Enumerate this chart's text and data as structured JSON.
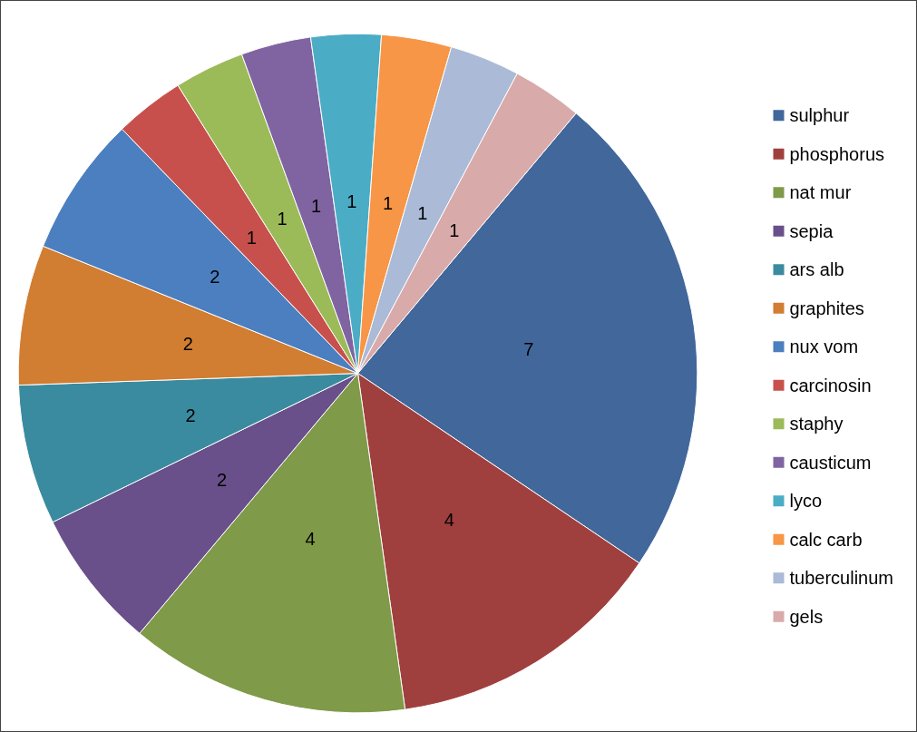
{
  "chart_data": {
    "type": "pie",
    "categories": [
      "sulphur",
      "phosphorus",
      "nat mur",
      "sepia",
      "ars alb",
      "graphites",
      "nux vom",
      "carcinosin",
      "staphy",
      "causticum",
      "lyco",
      "calc carb",
      "tuberculinum",
      "gels"
    ],
    "values": [
      7,
      4,
      4,
      2,
      2,
      2,
      2,
      1,
      1,
      1,
      1,
      1,
      1,
      1
    ],
    "colors": [
      "#41679b",
      "#a0403e",
      "#7f9a48",
      "#69508a",
      "#3a8ba0",
      "#d17d32",
      "#4b7fc0",
      "#c8504c",
      "#9bbb59",
      "#8064a2",
      "#4bacc6",
      "#f79646",
      "#aabad7",
      "#d9aaaa"
    ],
    "data_labels": true,
    "legend": "right"
  }
}
